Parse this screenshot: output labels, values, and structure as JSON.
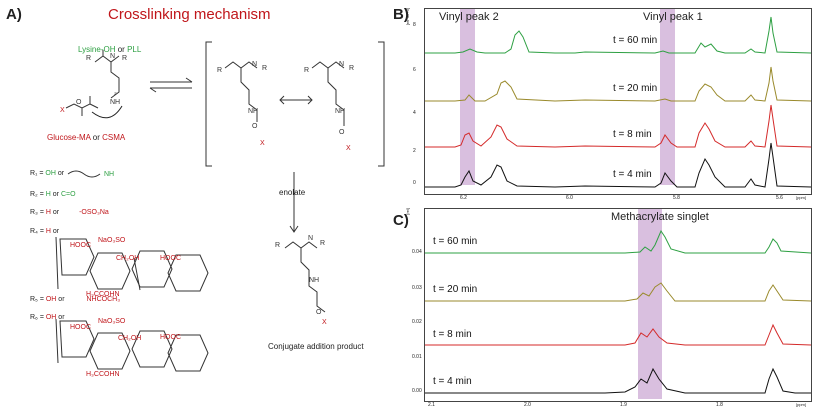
{
  "panelA": {
    "label": "A)",
    "title": "Crosslinking mechanism",
    "lysine_a": "Lysine-OH",
    "lysine_or": " or ",
    "lysine_b": "PLL",
    "glucose_a": "Glucose-MA",
    "glucose_or": " or ",
    "glucose_b": "CSMA",
    "enolate": "enolate",
    "product": "Conjugate addition product",
    "r_groups": [
      {
        "r": "R₁ = ",
        "a": "OH",
        "or": " or ",
        "b": ""
      },
      {
        "r": "R₂ = ",
        "a": "H",
        "or": " or ",
        "b": "C=O"
      },
      {
        "r": "R₃ = ",
        "a": "H",
        "or": " or ",
        "b": "-OSO₃Na"
      },
      {
        "r": "R₄ = ",
        "a": "H",
        "or": " or ",
        "b": ""
      },
      {
        "r": "R₅ = ",
        "a": "OH",
        "or": " or ",
        "b": "NHCOCH₃"
      },
      {
        "r": "R₆ = ",
        "a": "OH",
        "or": " or ",
        "b": ""
      }
    ]
  },
  "panelB": {
    "label": "B)",
    "vinyl2": "Vinyl peak 2",
    "vinyl1": "Vinyl peak 1",
    "yaxis": "[rel*1e+3]",
    "xunit": "[ppm]",
    "yticks": [
      "8",
      "6",
      "4",
      "2",
      "0"
    ],
    "xticks": [
      "6.2",
      "6.0",
      "5.8",
      "5.6"
    ],
    "traces": [
      {
        "label": "t = 60 min",
        "color": "#2ea043"
      },
      {
        "label": "t = 20 min",
        "color": "#9a8a2c"
      },
      {
        "label": "t = 8 min",
        "color": "#d42a2a"
      },
      {
        "label": "t = 4 min",
        "color": "#111111"
      }
    ]
  },
  "panelC": {
    "label": "C)",
    "title": "Methacrylate singlet",
    "yaxis": "[rel]",
    "xunit": "[ppm]",
    "yticks": [
      "0.04",
      "0.03",
      "0.02",
      "0.01",
      "0.00"
    ],
    "xticks": [
      "2.1",
      "2.0",
      "1.9",
      "1.8"
    ],
    "traces": [
      {
        "label": "t = 60 min",
        "color": "#2ea043"
      },
      {
        "label": "t = 20 min",
        "color": "#9a8a2c"
      },
      {
        "label": "t = 8 min",
        "color": "#d42a2a"
      },
      {
        "label": "t = 4 min",
        "color": "#111111"
      }
    ]
  },
  "colors": {
    "highlight": "#d9bfdf",
    "accent_red": "#c0161b",
    "green": "#2ea043"
  }
}
